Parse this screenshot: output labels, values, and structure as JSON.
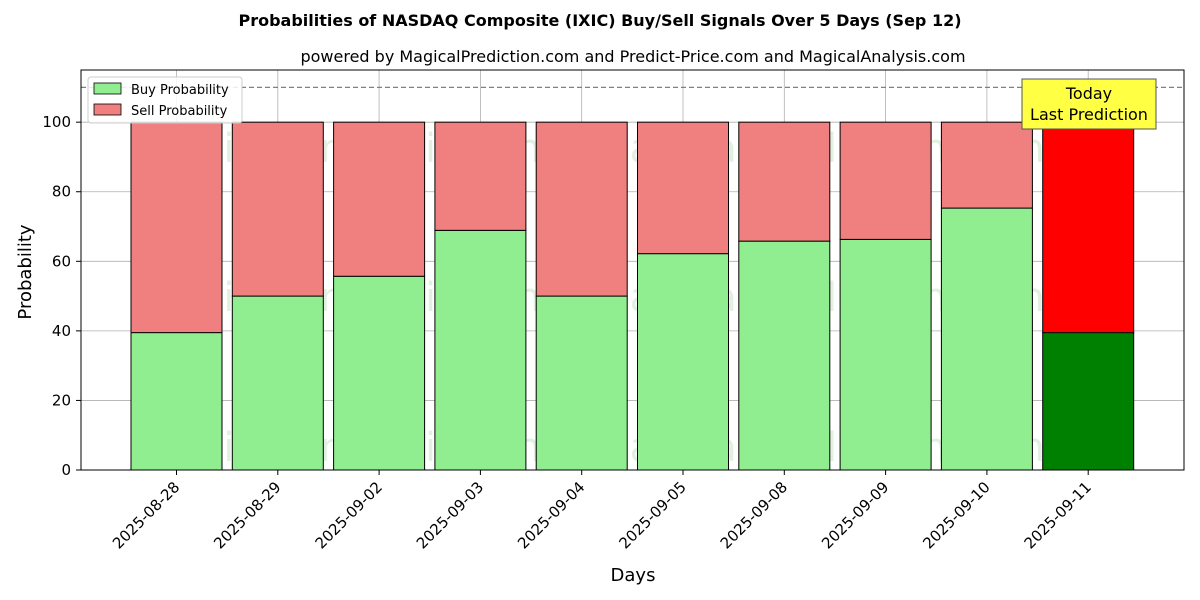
{
  "chart_data": {
    "type": "bar",
    "stacked": true,
    "title": "Probabilities of NASDAQ Composite (IXIC) Buy/Sell Signals Over 5 Days (Sep 12)",
    "subtitle": "powered by MagicalPrediction.com and Predict-Price.com and MagicalAnalysis.com",
    "xlabel": "Days",
    "ylabel": "Probability",
    "ylim": [
      0,
      115
    ],
    "yticks": [
      0,
      20,
      40,
      60,
      80,
      100
    ],
    "reference_line": 110,
    "grid": true,
    "legend_position": "top-left",
    "categories": [
      "2025-08-28",
      "2025-08-29",
      "2025-09-02",
      "2025-09-03",
      "2025-09-04",
      "2025-09-05",
      "2025-09-08",
      "2025-09-09",
      "2025-09-10",
      "2025-09-11"
    ],
    "series": [
      {
        "name": "Buy Probability",
        "color": "#90ee90",
        "last_color": "#008000",
        "values": [
          39.5,
          50.0,
          55.7,
          68.9,
          50.0,
          62.2,
          65.8,
          66.3,
          75.3,
          39.5
        ]
      },
      {
        "name": "Sell Probability",
        "color": "#f08080",
        "last_color": "#ff0000",
        "values": [
          60.5,
          50.0,
          44.3,
          31.1,
          50.0,
          37.8,
          34.2,
          33.7,
          24.7,
          60.5
        ]
      }
    ],
    "annotation": {
      "line1": "Today",
      "line2": "Last Prediction",
      "background": "#ffff44"
    },
    "watermarks": [
      "MagicalAnalysis.com",
      "MagicalPrediction.com"
    ]
  }
}
